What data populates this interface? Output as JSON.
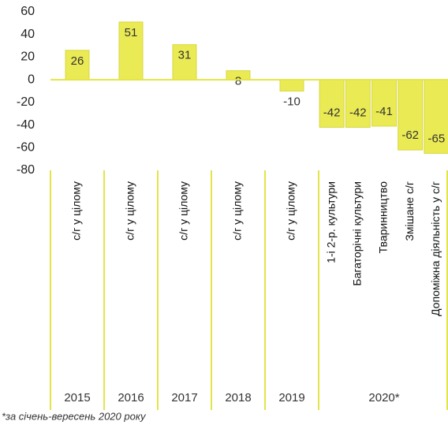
{
  "chart_data": {
    "type": "bar",
    "groups": [
      {
        "label": "2015",
        "categories": [
          "с/г у цілому"
        ],
        "values": [
          26
        ]
      },
      {
        "label": "2016",
        "categories": [
          "с/г у цілому"
        ],
        "values": [
          51
        ]
      },
      {
        "label": "2017",
        "categories": [
          "с/г у цілому"
        ],
        "values": [
          31
        ]
      },
      {
        "label": "2018",
        "categories": [
          "с/г у цілому"
        ],
        "values": [
          8
        ]
      },
      {
        "label": "2019",
        "categories": [
          "с/г у цілому"
        ],
        "values": [
          -10
        ]
      },
      {
        "label": "2020*",
        "categories": [
          "1-і 2-р. культури",
          "Багаторічні культури",
          "Тваринництво",
          "Змішане с/г",
          "Допоміжна діяльність у с/г"
        ],
        "values": [
          -42,
          -42,
          -41,
          -62,
          -65
        ]
      }
    ],
    "color": "#eaea55",
    "ylim": [
      -80,
      60
    ],
    "yticks": [
      -80,
      -60,
      -40,
      -20,
      0,
      20,
      40,
      60
    ],
    "footnote": "*за січень-вересень 2020 року"
  }
}
